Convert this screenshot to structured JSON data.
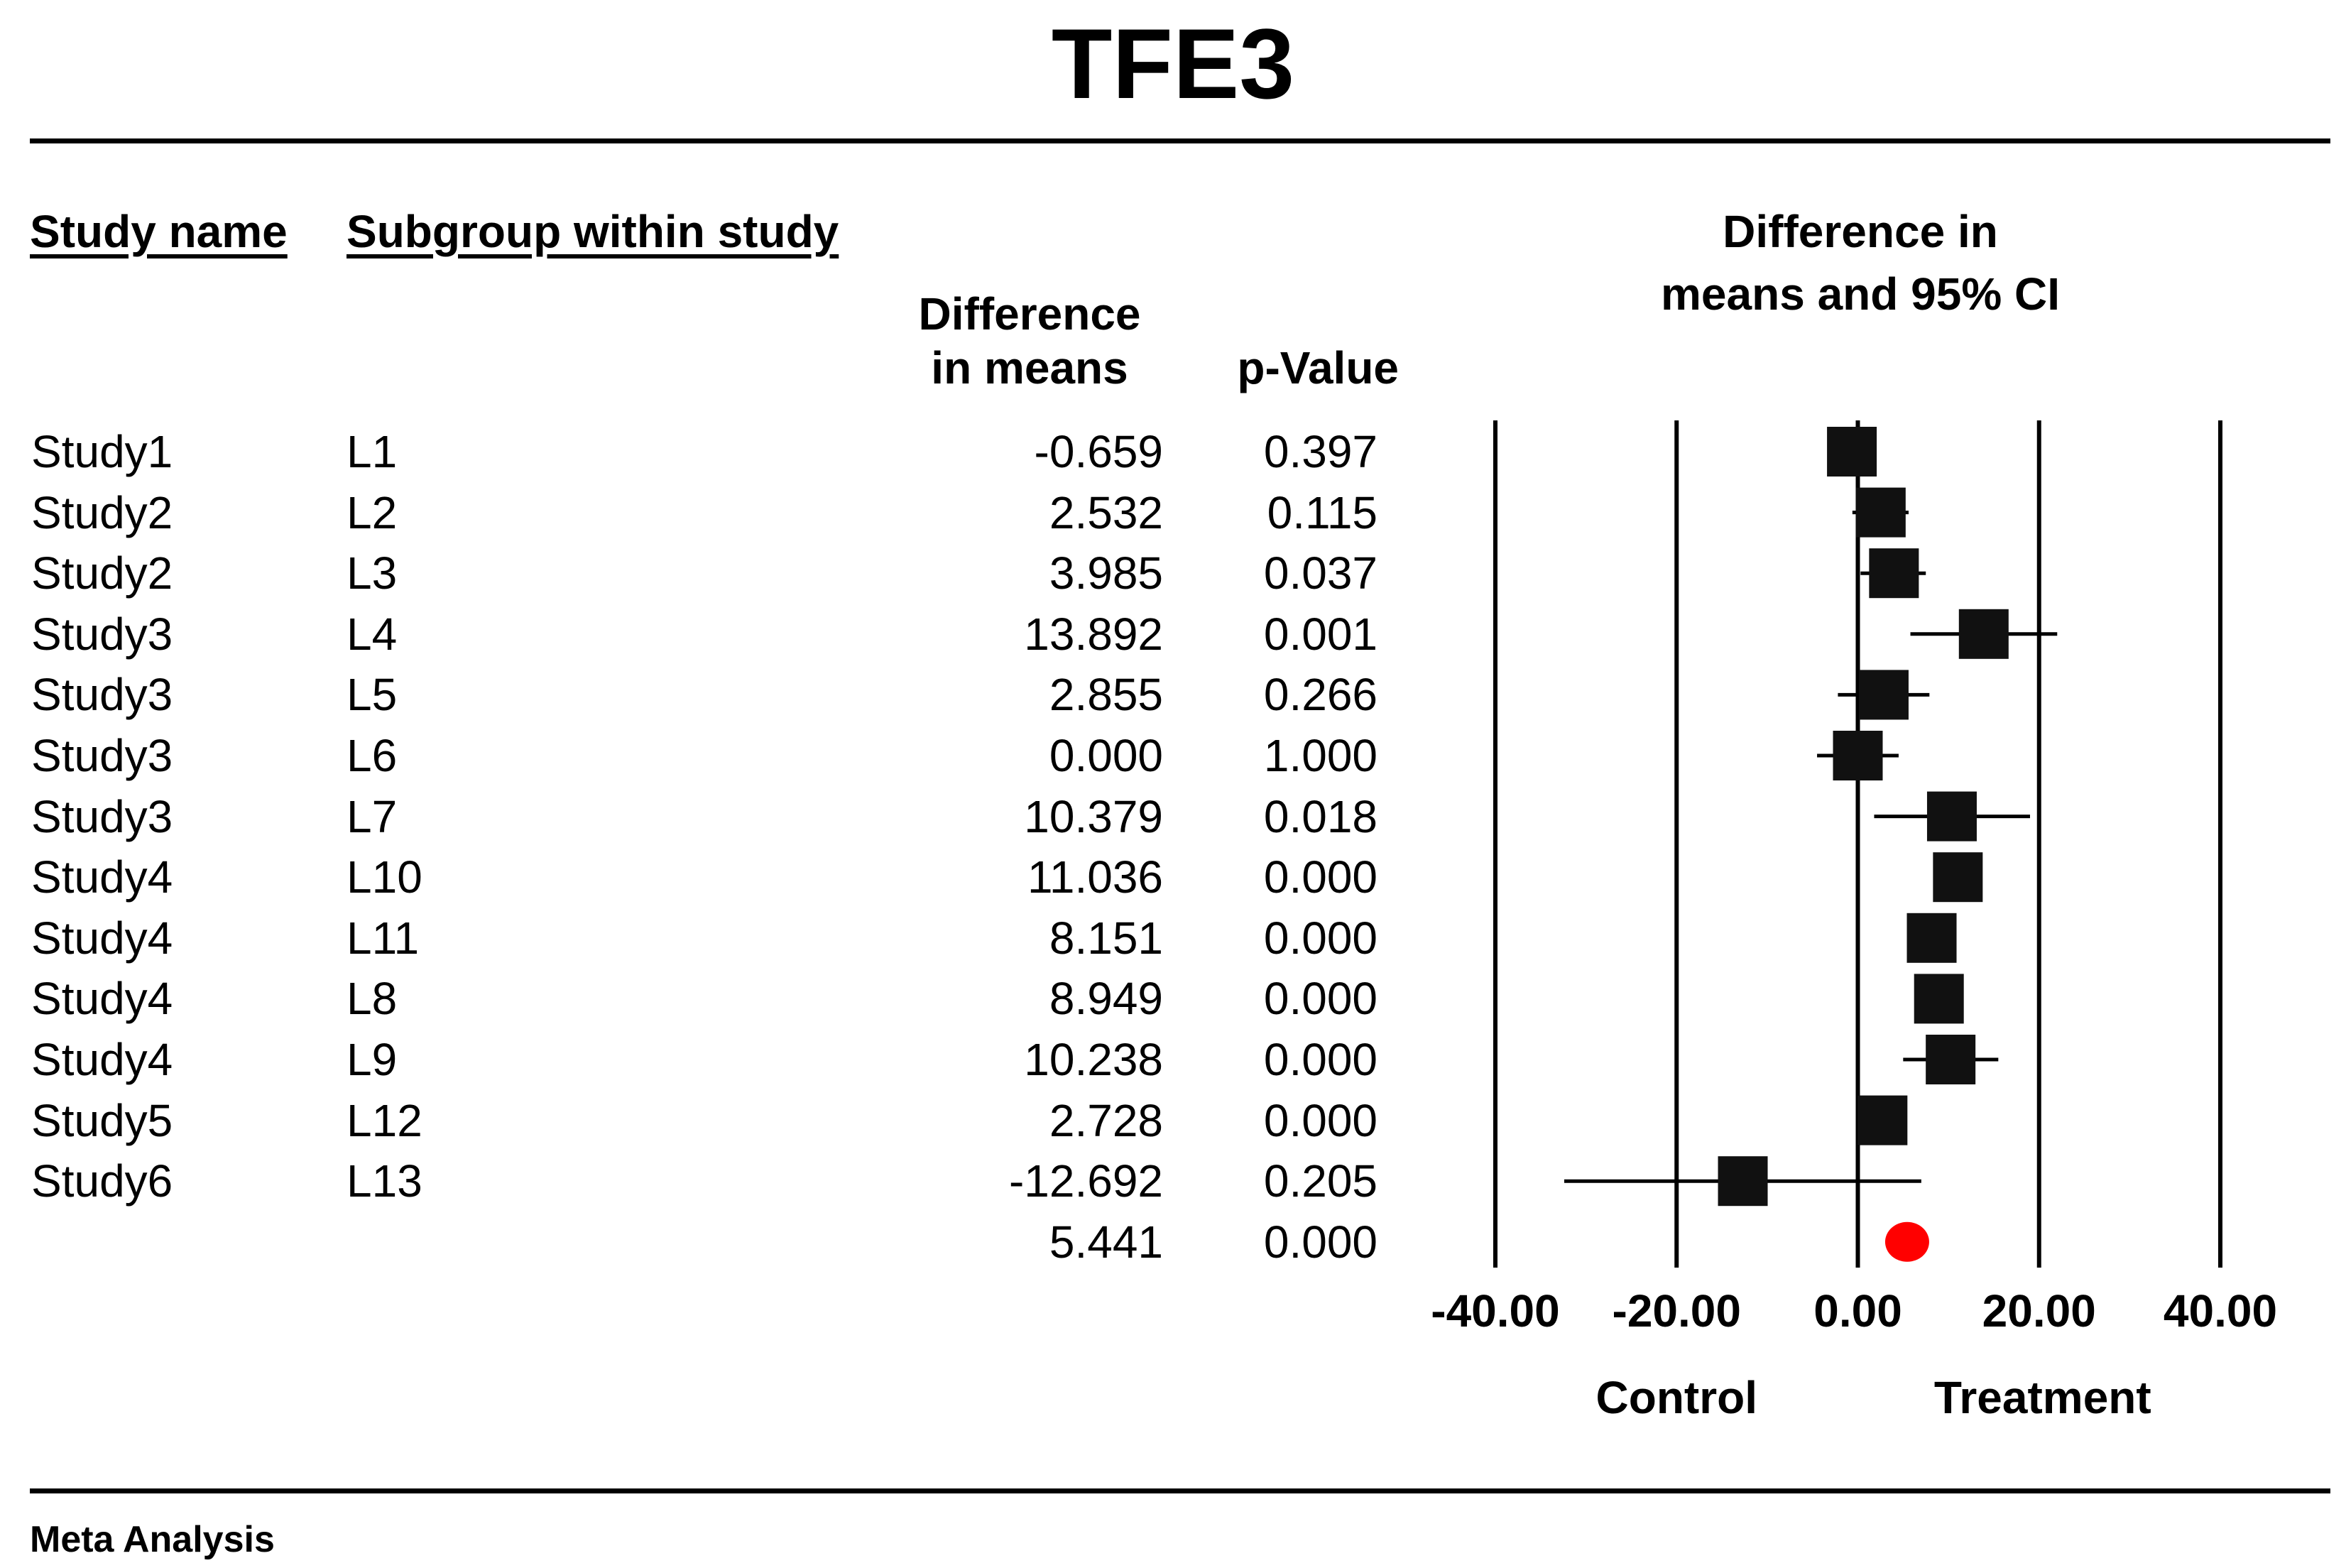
{
  "title": "TFE3",
  "headers": {
    "study_name": "Study name",
    "subgroup": "Subgroup within study",
    "diff_line1": "Difference",
    "diff_line2": "in means",
    "pvalue": "p-Value",
    "plot_line1": "Difference in",
    "plot_line2": "means and 95% CI"
  },
  "footer": "Meta Analysis",
  "colors": {
    "marker": "#111111",
    "summary": "#ff0000",
    "line": "#000000"
  },
  "chart_data": {
    "type": "forest",
    "title": "Difference in means and 95% CI",
    "xlim": [
      -40,
      40
    ],
    "xticks": [
      -40,
      -20,
      0,
      20,
      40
    ],
    "xtick_labels": [
      "-40.00",
      "-20.00",
      "0.00",
      "20.00",
      "40.00"
    ],
    "left_label": "Control",
    "right_label": "Treatment",
    "studies": [
      {
        "study": "Study1",
        "subgroup": "L1",
        "diff": "-0.659",
        "p": "0.397",
        "value": -0.659,
        "ci": [
          -1.5,
          0.3
        ]
      },
      {
        "study": "Study2",
        "subgroup": "L2",
        "diff": "2.532",
        "p": "0.115",
        "value": 2.532,
        "ci": [
          -0.6,
          5.6
        ]
      },
      {
        "study": "Study2",
        "subgroup": "L3",
        "diff": "3.985",
        "p": "0.037",
        "value": 3.985,
        "ci": [
          0.3,
          7.5
        ]
      },
      {
        "study": "Study3",
        "subgroup": "L4",
        "diff": "13.892",
        "p": "0.001",
        "value": 13.892,
        "ci": [
          5.8,
          22.0
        ]
      },
      {
        "study": "Study3",
        "subgroup": "L5",
        "diff": "2.855",
        "p": "0.266",
        "value": 2.855,
        "ci": [
          -2.2,
          7.9
        ]
      },
      {
        "study": "Study3",
        "subgroup": "L6",
        "diff": "0.000",
        "p": "1.000",
        "value": 0.0,
        "ci": [
          -4.5,
          4.5
        ]
      },
      {
        "study": "Study3",
        "subgroup": "L7",
        "diff": "10.379",
        "p": "0.018",
        "value": 10.379,
        "ci": [
          1.8,
          19.0
        ]
      },
      {
        "study": "Study4",
        "subgroup": "L10",
        "diff": "11.036",
        "p": "0.000",
        "value": 11.036,
        "ci": [
          9.0,
          13.0
        ]
      },
      {
        "study": "Study4",
        "subgroup": "L11",
        "diff": "8.151",
        "p": "0.000",
        "value": 8.151,
        "ci": [
          6.3,
          10.0
        ]
      },
      {
        "study": "Study4",
        "subgroup": "L8",
        "diff": "8.949",
        "p": "0.000",
        "value": 8.949,
        "ci": [
          7.0,
          10.9
        ]
      },
      {
        "study": "Study4",
        "subgroup": "L9",
        "diff": "10.238",
        "p": "0.000",
        "value": 10.238,
        "ci": [
          5.0,
          15.5
        ]
      },
      {
        "study": "Study5",
        "subgroup": "L12",
        "diff": "2.728",
        "p": "0.000",
        "value": 2.728,
        "ci": [
          1.0,
          4.5
        ]
      },
      {
        "study": "Study6",
        "subgroup": "L13",
        "diff": "-12.692",
        "p": "0.205",
        "value": -12.692,
        "ci": [
          -32.4,
          7.0
        ]
      }
    ],
    "summary": {
      "diff": "5.441",
      "p": "0.000",
      "value": 5.441
    }
  }
}
